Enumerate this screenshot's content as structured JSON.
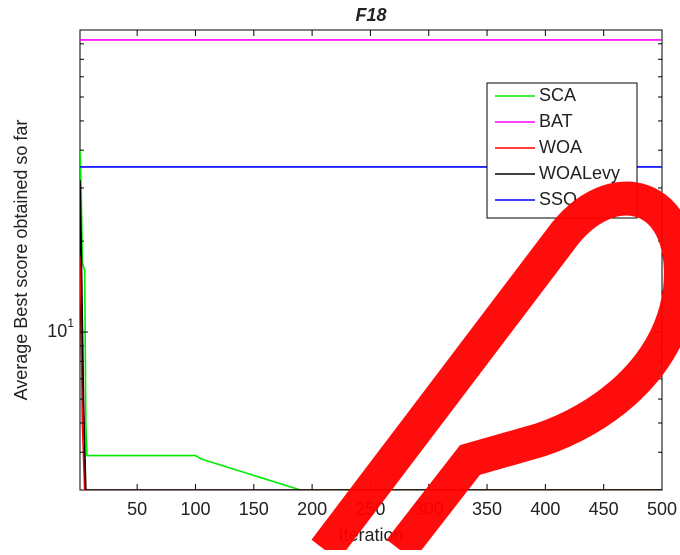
{
  "chart_data": {
    "type": "line",
    "title": "F18",
    "xlabel": "Iteration",
    "ylabel": "Average Best score obtained so far",
    "log_y": true,
    "legend": "upper right",
    "xlim": [
      1,
      500
    ],
    "xticks": [
      50,
      100,
      150,
      200,
      250,
      300,
      350,
      400,
      450,
      500
    ],
    "ylim": [
      3,
      100
    ],
    "yticks": [
      {
        "value": 10,
        "label": "10^1"
      }
    ],
    "minor_yticks": [
      4,
      5,
      6,
      7,
      8,
      9,
      20,
      30,
      40,
      50,
      60,
      70,
      80,
      90
    ],
    "series": [
      {
        "name": "SCA",
        "color": "#00ee00",
        "x": [
          1,
          2,
          3,
          5,
          6,
          7,
          100,
          105,
          190,
          500
        ],
        "values": [
          40,
          30,
          17,
          16,
          5,
          3.9,
          3.9,
          3.8,
          3.0,
          3.0
        ]
      },
      {
        "name": "BAT",
        "color": "#ff00ff",
        "x": [
          1,
          500
        ],
        "values": [
          92.7,
          92.7
        ]
      },
      {
        "name": "WOA",
        "color": "#ff0000",
        "x": [
          1,
          2,
          3,
          5,
          500
        ],
        "values": [
          17.8,
          12,
          5,
          3,
          3
        ]
      },
      {
        "name": "WOALevy",
        "color": "#000000",
        "x": [
          1,
          2,
          4,
          6,
          500
        ],
        "values": [
          31.8,
          20,
          6,
          3,
          3
        ]
      },
      {
        "name": "SSO",
        "color": "#0000ff",
        "x": [
          1,
          500
        ],
        "values": [
          35.2,
          35.2
        ]
      }
    ]
  }
}
